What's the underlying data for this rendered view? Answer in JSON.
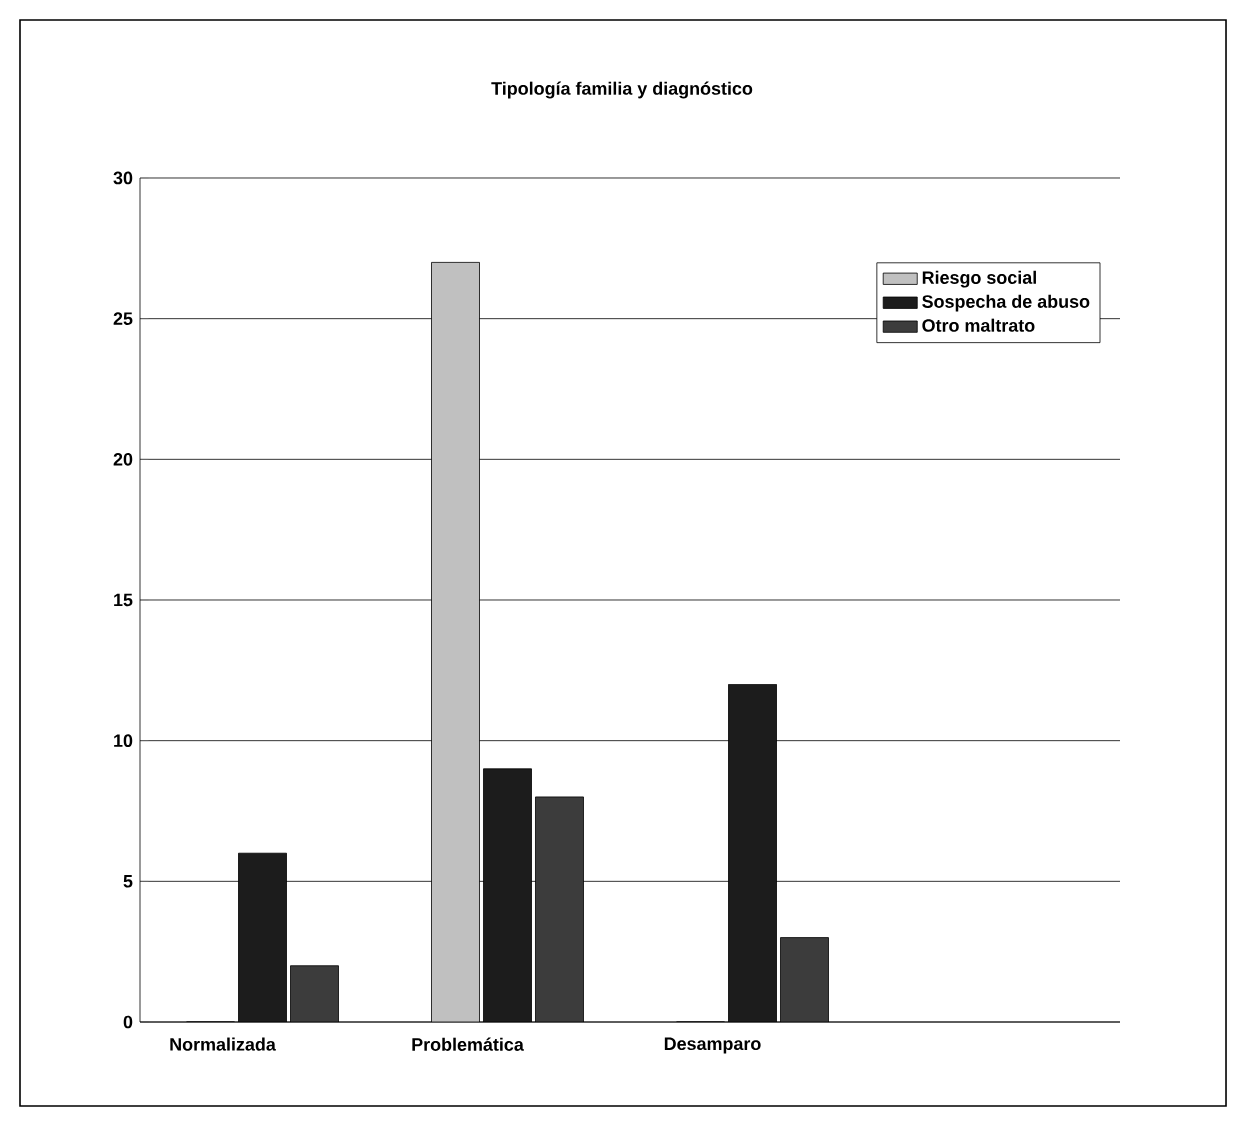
{
  "chart_data": {
    "type": "bar",
    "title": "Tipología familia y diagnóstico",
    "categories": [
      "Normalizada",
      "Problemática",
      "Desamparo",
      null
    ],
    "series": [
      {
        "name": "Riesgo social",
        "color": "#c0c0c0",
        "values": [
          0,
          27,
          0,
          null
        ]
      },
      {
        "name": "Sospecha de abuso",
        "color": "#1c1c1c",
        "values": [
          6,
          9,
          12,
          null
        ]
      },
      {
        "name": "Otro maltrato",
        "color": "#3c3c3c",
        "values": [
          2,
          8,
          3,
          null
        ]
      }
    ],
    "ylim": [
      0,
      30
    ],
    "yticks": [
      0,
      5,
      10,
      15,
      20,
      25,
      30
    ],
    "grid": "y",
    "legend": "top right"
  }
}
